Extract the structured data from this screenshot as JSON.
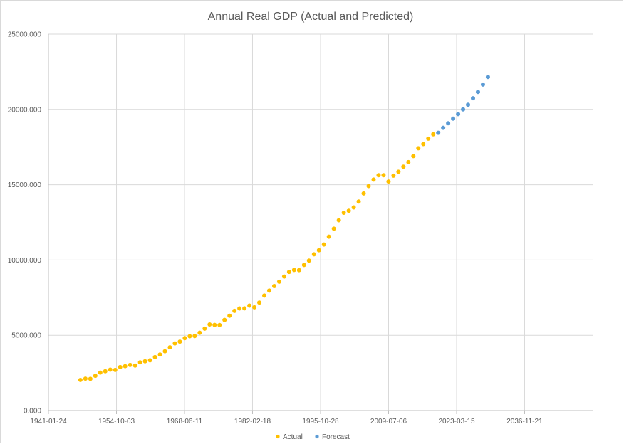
{
  "chart_data": {
    "type": "scatter",
    "title": "Annual Real GDP (Actual and Predicted)",
    "xlabel": "",
    "ylabel": "",
    "x_ticks": [
      "1941-01-24",
      "1954-10-03",
      "1968-06-11",
      "1982-02-18",
      "1995-10-28",
      "2009-07-06",
      "2023-03-15",
      "2036-11-21"
    ],
    "y_ticks": [
      "0.000",
      "5000.000",
      "10000.000",
      "15000.000",
      "20000.000",
      "25000.000"
    ],
    "xlim": [
      "1941-01-24",
      "2050-07-31"
    ],
    "ylim": [
      0,
      25000
    ],
    "grid": true,
    "legend_position": "bottom",
    "series": [
      {
        "name": "Actual",
        "color": "#FFC000",
        "x": [
          1947,
          1948,
          1949,
          1950,
          1951,
          1952,
          1953,
          1954,
          1955,
          1956,
          1957,
          1958,
          1959,
          1960,
          1961,
          1962,
          1963,
          1964,
          1965,
          1966,
          1967,
          1968,
          1969,
          1970,
          1971,
          1972,
          1973,
          1974,
          1975,
          1976,
          1977,
          1978,
          1979,
          1980,
          1981,
          1982,
          1983,
          1984,
          1985,
          1986,
          1987,
          1988,
          1989,
          1990,
          1991,
          1992,
          1993,
          1994,
          1995,
          1996,
          1997,
          1998,
          1999,
          2000,
          2001,
          2002,
          2003,
          2004,
          2005,
          2006,
          2007,
          2008,
          2009,
          2010,
          2011,
          2012,
          2013,
          2014,
          2015,
          2016,
          2017,
          2018
        ],
        "y": [
          2035,
          2120,
          2110,
          2310,
          2520,
          2610,
          2720,
          2700,
          2890,
          2950,
          3030,
          2990,
          3200,
          3270,
          3340,
          3550,
          3720,
          3940,
          4200,
          4460,
          4580,
          4810,
          4940,
          4950,
          5170,
          5440,
          5720,
          5690,
          5680,
          6020,
          6300,
          6620,
          6780,
          6790,
          6970,
          6860,
          7170,
          7640,
          7970,
          8270,
          8560,
          8900,
          9210,
          9340,
          9330,
          9670,
          9960,
          10380,
          10650,
          11030,
          11550,
          12080,
          12640,
          13140,
          13270,
          13490,
          13880,
          14420,
          14910,
          15340,
          15630,
          15630,
          15210,
          15600,
          15860,
          16200,
          16500,
          16900,
          17420,
          17700,
          18060,
          18350
        ]
      },
      {
        "name": "Forecast",
        "color": "#5B9BD5",
        "x": [
          2019,
          2020,
          2021,
          2022,
          2023,
          2024,
          2025,
          2026,
          2027,
          2028,
          2029
        ],
        "y": [
          18450,
          18780,
          19080,
          19390,
          19690,
          20000,
          20310,
          20740,
          21160,
          21650,
          22150
        ]
      }
    ]
  }
}
